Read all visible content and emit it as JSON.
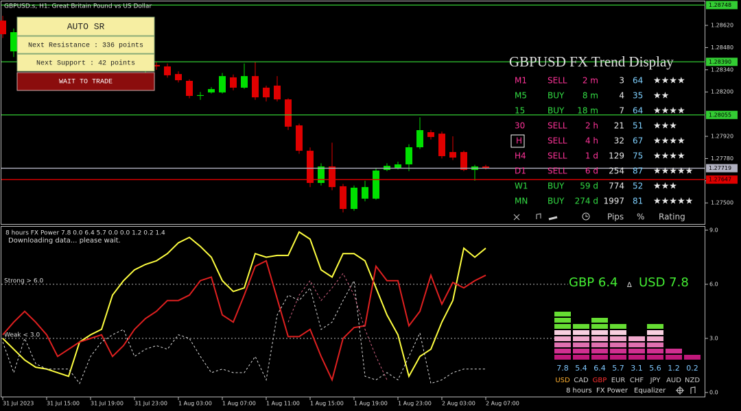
{
  "header": {
    "symbol": "GBPUSD.s, H1:  Great Britain Pound vs US Dollar"
  },
  "auto_sr": {
    "title": "AUTO SR",
    "resistance": "Next Resistance : 336 points",
    "support": "Next Support : 42 points",
    "action": "WAIT TO TRADE"
  },
  "price_chart": {
    "type": "candlestick",
    "ylim": [
      1.27367,
      1.2878
    ],
    "yticks": [
      {
        "value": 1.2862,
        "label": "1.28620"
      },
      {
        "value": 1.2848,
        "label": "1.28480"
      },
      {
        "value": 1.2834,
        "label": "1.28340"
      },
      {
        "value": 1.282,
        "label": "1.28200"
      },
      {
        "value": 1.2792,
        "label": "1.27920"
      },
      {
        "value": 1.2778,
        "label": "1.27780"
      },
      {
        "value": 1.2764,
        "label": "1.27640"
      },
      {
        "value": 1.275,
        "label": "1.27500"
      }
    ],
    "levels": [
      {
        "value": 1.28748,
        "label": "1.28748",
        "color": "#33cc33"
      },
      {
        "value": 1.2839,
        "label": "1.28390",
        "color": "#33cc33"
      },
      {
        "value": 1.28055,
        "label": "1.28055",
        "color": "#33cc33"
      },
      {
        "value": 1.27719,
        "label": "1.27719",
        "color": "#b0b0c0"
      },
      {
        "value": 1.27647,
        "label": "1.27647",
        "color": "#e00000"
      }
    ],
    "up_color": "#00e000",
    "down_color": "#e00000",
    "open": [
      1.2865,
      1.28456,
      1.28577,
      1.2852,
      1.2856,
      1.2848,
      1.2843,
      1.2847,
      1.2841,
      1.2838,
      1.2842,
      1.2844,
      1.2839,
      1.2835,
      1.2837,
      1.28361,
      1.28313,
      1.2827,
      1.28175,
      1.28197,
      1.28197,
      1.28292,
      1.28227,
      1.283,
      1.28227,
      1.2824,
      1.28153,
      1.27989,
      1.27829,
      1.27626,
      1.2773,
      1.27605,
      1.27462,
      1.27527,
      1.27527,
      1.27708,
      1.27721,
      1.27743,
      1.27851,
      1.27946,
      1.27937,
      1.27821,
      1.27821,
      1.27708,
      1.2773
    ],
    "high": [
      1.2868,
      1.286,
      1.2861,
      1.2858,
      1.2857,
      1.285,
      1.2849,
      1.2848,
      1.2844,
      1.2845,
      1.2847,
      1.2846,
      1.2841,
      1.284,
      1.2839,
      1.2838,
      1.2833,
      1.2828,
      1.282,
      1.2823,
      1.2832,
      1.2831,
      1.2838,
      1.2839,
      1.2824,
      1.283,
      1.2816,
      1.28,
      1.2785,
      1.2775,
      1.2788,
      1.2762,
      1.2761,
      1.2764,
      1.2772,
      1.2775,
      1.2776,
      1.2787,
      1.2804,
      1.2796,
      1.2795,
      1.2792,
      1.2783,
      1.2774,
      1.2774
    ],
    "low": [
      1.2854,
      1.2842,
      1.285,
      1.2849,
      1.2846,
      1.2841,
      1.284,
      1.2839,
      1.2835,
      1.2836,
      1.284,
      1.2837,
      1.2833,
      1.2832,
      1.2834,
      1.2829,
      1.2826,
      1.2816,
      1.2815,
      1.2819,
      1.2819,
      1.2821,
      1.2822,
      1.2815,
      1.2814,
      1.2814,
      1.2796,
      1.2781,
      1.276,
      1.2761,
      1.2758,
      1.2744,
      1.2745,
      1.2751,
      1.2752,
      1.277,
      1.2771,
      1.277,
      1.2784,
      1.279,
      1.2778,
      1.2777,
      1.277,
      1.2764,
      1.2771
    ],
    "close": [
      1.28564,
      1.28577,
      1.2852,
      1.2856,
      1.2848,
      1.2843,
      1.2847,
      1.2841,
      1.2838,
      1.2842,
      1.2844,
      1.2839,
      1.2835,
      1.2837,
      1.28361,
      1.28305,
      1.28274,
      1.28175,
      1.2818,
      1.28218,
      1.283,
      1.28227,
      1.283,
      1.28166,
      1.28166,
      1.28153,
      1.27981,
      1.27829,
      1.27626,
      1.2773,
      1.276,
      1.27462,
      1.27596,
      1.276,
      1.27704,
      1.27734,
      1.27743,
      1.27851,
      1.27959,
      1.27916,
      1.27795,
      1.27786,
      1.27708,
      1.2773,
      1.27719
    ],
    "time_labels": [
      "31 Jul 2023",
      "31 Jul 15:00",
      "31 Jul 19:00",
      "31 Jul 23:00",
      "1 Aug 03:00",
      "1 Aug 07:00",
      "1 Aug 11:00",
      "1 Aug 15:00",
      "1 Aug 19:00",
      "1 Aug 23:00",
      "2 Aug 03:00",
      "2 Aug 07:00"
    ]
  },
  "trend_display": {
    "title": "GBPUSD FX Trend Display",
    "rows": [
      [
        "M1",
        "SELL",
        "2 m",
        "3",
        "64",
        "★★★★"
      ],
      [
        "M5",
        "BUY",
        "8 m",
        "4",
        "35",
        "★★"
      ],
      [
        "15",
        "BUY",
        "18 m",
        "7",
        "64",
        "★★★★"
      ],
      [
        "30",
        "SELL",
        "2 h",
        "21",
        "51",
        "★★★"
      ],
      [
        "H",
        "SELL",
        "4 h",
        "32",
        "67",
        "★★★★"
      ],
      [
        "H4",
        "SELL",
        "1 d",
        "129",
        "75",
        "★★★★"
      ],
      [
        "D1",
        "SELL",
        "6 d",
        "254",
        "87",
        "★★★★★"
      ],
      [
        "W1",
        "BUY",
        "59 d",
        "774",
        "52",
        "★★★"
      ],
      [
        "MN",
        "BUY",
        "274 d",
        "1997",
        "81",
        "★★★★★"
      ]
    ],
    "footer": [
      "Pips",
      "%",
      "Rating"
    ]
  },
  "fx_power": {
    "type": "line",
    "header": "8 hours FX Power 7.8 0.0 6.4 5.7 0.0 0.0 1.2 0.2 1.4",
    "status": "Downloading data... please wait.",
    "ylim": [
      0,
      9
    ],
    "yticks": [
      {
        "value": 9,
        "label": "9.0"
      },
      {
        "value": 6,
        "label": "6.0"
      },
      {
        "value": 3,
        "label": "3.0"
      },
      {
        "value": 0,
        "label": "0.0"
      }
    ],
    "levels": [
      {
        "value": 6,
        "label": "Strong > 6.0"
      },
      {
        "value": 3,
        "label": "Weak < 3.0"
      }
    ],
    "series": [
      {
        "color": "#ffff40",
        "dashed": false,
        "values": [
          3.0,
          2.4,
          1.8,
          1.4,
          1.3,
          1.1,
          0.9,
          2.8,
          3.2,
          3.5,
          5.4,
          6.2,
          6.8,
          7.1,
          7.3,
          7.7,
          8.3,
          8.6,
          8.1,
          7.5,
          6.2,
          5.6,
          5.8,
          7.7,
          7.5,
          7.6,
          7.6,
          8.9,
          8.5,
          6.8,
          6.4,
          7.7,
          7.7,
          7.3,
          5.8,
          4.3,
          3.2,
          0.9,
          2.0,
          2.4,
          3.9,
          5.1,
          8.0,
          7.5,
          8.0
        ]
      },
      {
        "color": "#e02020",
        "dashed": false,
        "values": [
          3.2,
          3.9,
          4.5,
          3.9,
          3.2,
          2.0,
          2.4,
          2.8,
          3.0,
          3.2,
          2.0,
          2.6,
          3.5,
          4.1,
          4.5,
          5.1,
          5.1,
          5.4,
          6.2,
          6.4,
          4.3,
          3.9,
          5.4,
          7.0,
          7.3,
          5.2,
          3.1,
          3.1,
          3.5,
          2.0,
          0.7,
          3.0,
          3.6,
          3.7,
          7.0,
          6.2,
          6.2,
          3.7,
          4.5,
          6.5,
          4.9,
          6.1,
          5.8,
          6.2,
          6.5
        ]
      },
      {
        "color": "#e0e0e0",
        "dashed": true,
        "values": [
          2.8,
          1.1,
          3.0,
          1.6,
          1.3,
          1.3,
          1.3,
          0.5,
          2.0,
          2.8,
          3.2,
          3.5,
          2.0,
          2.4,
          2.6,
          2.4,
          3.2,
          3.0,
          2.0,
          1.1,
          1.3,
          1.1,
          1.1,
          2.0,
          0.7,
          4.3,
          5.4,
          5.1,
          5.8,
          3.5,
          3.9,
          5.1,
          6.2,
          0.9,
          0.7,
          1.1,
          0.7,
          2.0,
          3.3,
          0.5,
          0.7,
          1.1,
          1.3,
          1.3,
          1.3
        ]
      },
      {
        "color": "#d06080",
        "dashed": true,
        "values": [
          null,
          null,
          null,
          null,
          null,
          null,
          null,
          null,
          null,
          null,
          null,
          null,
          null,
          null,
          null,
          null,
          null,
          null,
          null,
          null,
          null,
          null,
          null,
          null,
          null,
          null,
          3.9,
          5.4,
          6.2,
          5.1,
          5.8,
          6.6,
          5.4,
          3.5,
          2.0,
          0.7,
          null,
          null,
          null,
          null,
          null,
          null,
          null,
          null,
          null
        ]
      }
    ],
    "pair_left": "GBP 6.4",
    "pair_mid": "∆",
    "pair_right": "USD 7.8",
    "equalizer": {
      "currencies": [
        "USD",
        "CAD",
        "GBP",
        "EUR",
        "CHF",
        "JPY",
        "AUD",
        "NZD"
      ],
      "values": [
        7.8,
        5.4,
        6.4,
        5.7,
        3.1,
        5.6,
        1.2,
        0.2
      ],
      "label_colors": [
        "#ffb030",
        "#cccccc",
        "#ff3030",
        "#cccccc",
        "#cccccc",
        "#cccccc",
        "#cccccc",
        "#cccccc"
      ]
    },
    "toolbar": [
      "8 hours",
      "FX Power",
      "Equalizer"
    ]
  }
}
